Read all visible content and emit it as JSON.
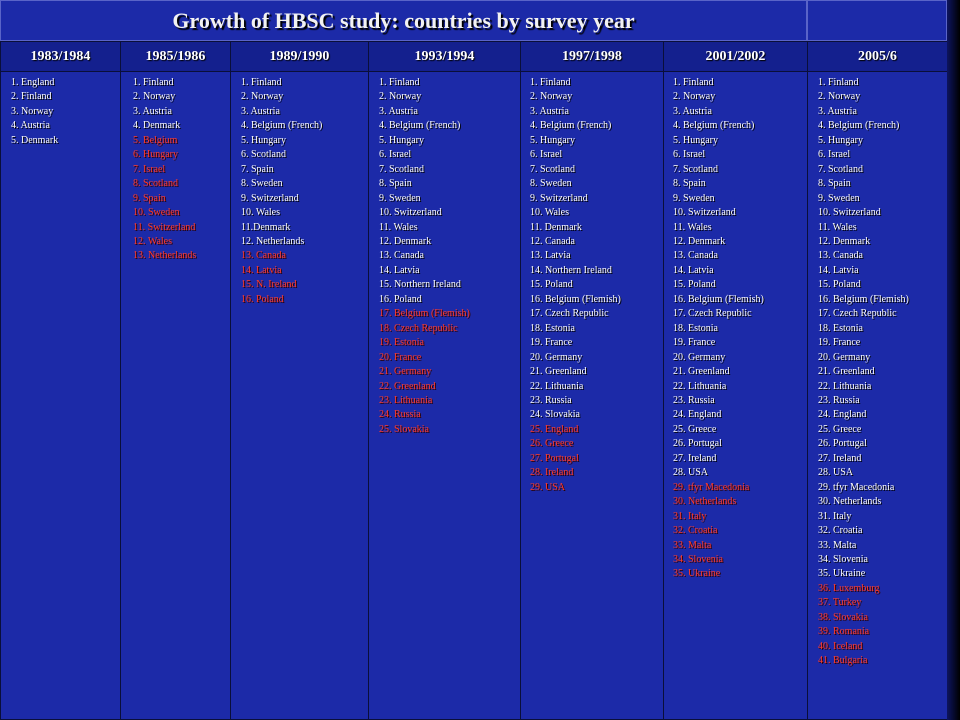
{
  "title": "Growth of  HBSC study: countries by survey year",
  "colors": {
    "background": "#1c2aa8",
    "header": "#14208e",
    "text": "#ffffff",
    "new_country": "#ff3a2a"
  },
  "columns": [
    {
      "year": "1983/1984",
      "countries": [
        {
          "label": "1. England",
          "new": false
        },
        {
          "label": "2. Finland",
          "new": false
        },
        {
          "label": "3. Norway",
          "new": false
        },
        {
          "label": "4. Austria",
          "new": false
        },
        {
          "label": "5. Denmark",
          "new": false
        }
      ]
    },
    {
      "year": "1985/1986",
      "countries": [
        {
          "label": "1. Finland",
          "new": false
        },
        {
          "label": "2. Norway",
          "new": false
        },
        {
          "label": "3. Austria",
          "new": false
        },
        {
          "label": "4. Denmark",
          "new": false
        },
        {
          "label": "5. Belgium",
          "new": true
        },
        {
          "label": "6. Hungary",
          "new": true
        },
        {
          "label": "7. Israel",
          "new": true
        },
        {
          "label": "8. Scotland",
          "new": true
        },
        {
          "label": "9. Spain",
          "new": true
        },
        {
          "label": "10. Sweden",
          "new": true
        },
        {
          "label": "11. Switzerland",
          "new": true
        },
        {
          "label": "12. Wales",
          "new": true
        },
        {
          "label": "13. Netherlands",
          "new": true
        }
      ]
    },
    {
      "year": "1989/1990",
      "countries": [
        {
          "label": "1. Finland",
          "new": false
        },
        {
          "label": "2. Norway",
          "new": false
        },
        {
          "label": "3. Austria",
          "new": false
        },
        {
          "label": "4. Belgium (French)",
          "new": false
        },
        {
          "label": "5. Hungary",
          "new": false
        },
        {
          "label": "6. Scotland",
          "new": false
        },
        {
          "label": "7. Spain",
          "new": false
        },
        {
          "label": "8. Sweden",
          "new": false
        },
        {
          "label": "9. Switzerland",
          "new": false
        },
        {
          "label": "10. Wales",
          "new": false
        },
        {
          "label": "11.Denmark",
          "new": false
        },
        {
          "label": "12. Netherlands",
          "new": false
        },
        {
          "label": "13. Canada",
          "new": true
        },
        {
          "label": "14. Latvia",
          "new": true
        },
        {
          "label": "15. N. Ireland",
          "new": true
        },
        {
          "label": "16. Poland",
          "new": true
        }
      ]
    },
    {
      "year": "1993/1994",
      "countries": [
        {
          "label": "1. Finland",
          "new": false
        },
        {
          "label": "2. Norway",
          "new": false
        },
        {
          "label": "3. Austria",
          "new": false
        },
        {
          "label": "4. Belgium (French)",
          "new": false
        },
        {
          "label": "5. Hungary",
          "new": false
        },
        {
          "label": "6. Israel",
          "new": false
        },
        {
          "label": "7. Scotland",
          "new": false
        },
        {
          "label": "8. Spain",
          "new": false
        },
        {
          "label": "9. Sweden",
          "new": false
        },
        {
          "label": "10. Switzerland",
          "new": false
        },
        {
          "label": "11. Wales",
          "new": false
        },
        {
          "label": "12. Denmark",
          "new": false
        },
        {
          "label": "13. Canada",
          "new": false
        },
        {
          "label": "14. Latvia",
          "new": false
        },
        {
          "label": "15. Northern Ireland",
          "new": false
        },
        {
          "label": "16. Poland",
          "new": false
        },
        {
          "label": "17. Belgium (Flemish)",
          "new": true
        },
        {
          "label": "18. Czech Republic",
          "new": true
        },
        {
          "label": "19. Estonia",
          "new": true
        },
        {
          "label": "20. France",
          "new": true
        },
        {
          "label": "21. Germany",
          "new": true
        },
        {
          "label": "22. Greenland",
          "new": true
        },
        {
          "label": "23. Lithuania",
          "new": true
        },
        {
          "label": "24. Russia",
          "new": true
        },
        {
          "label": "25. Slovakia",
          "new": true
        }
      ]
    },
    {
      "year": "1997/1998",
      "countries": [
        {
          "label": "1. Finland",
          "new": false
        },
        {
          "label": "2. Norway",
          "new": false
        },
        {
          "label": "3. Austria",
          "new": false
        },
        {
          "label": "4. Belgium (French)",
          "new": false
        },
        {
          "label": "5. Hungary",
          "new": false
        },
        {
          "label": "6. Israel",
          "new": false
        },
        {
          "label": "7. Scotland",
          "new": false
        },
        {
          "label": "8. Sweden",
          "new": false
        },
        {
          "label": "9. Switzerland",
          "new": false
        },
        {
          "label": "10. Wales",
          "new": false
        },
        {
          "label": "11. Denmark",
          "new": false
        },
        {
          "label": "12. Canada",
          "new": false
        },
        {
          "label": "13. Latvia",
          "new": false
        },
        {
          "label": "14. Northern Ireland",
          "new": false
        },
        {
          "label": "15. Poland",
          "new": false
        },
        {
          "label": "16. Belgium (Flemish)",
          "new": false
        },
        {
          "label": "17. Czech Republic",
          "new": false
        },
        {
          "label": "18. Estonia",
          "new": false
        },
        {
          "label": "19. France",
          "new": false
        },
        {
          "label": "20. Germany",
          "new": false
        },
        {
          "label": "21. Greenland",
          "new": false
        },
        {
          "label": "22. Lithuania",
          "new": false
        },
        {
          "label": "23. Russia",
          "new": false
        },
        {
          "label": "24. Slovakia",
          "new": false
        },
        {
          "label": "25. England",
          "new": true
        },
        {
          "label": "26. Greece",
          "new": true
        },
        {
          "label": "27. Portugal",
          "new": true
        },
        {
          "label": "28. Ireland",
          "new": true
        },
        {
          "label": "29. USA",
          "new": true
        }
      ]
    },
    {
      "year": "2001/2002",
      "countries": [
        {
          "label": "1. Finland",
          "new": false
        },
        {
          "label": "2. Norway",
          "new": false
        },
        {
          "label": "3. Austria",
          "new": false
        },
        {
          "label": "4. Belgium (French)",
          "new": false
        },
        {
          "label": "5. Hungary",
          "new": false
        },
        {
          "label": "6. Israel",
          "new": false
        },
        {
          "label": "7. Scotland",
          "new": false
        },
        {
          "label": "8. Spain",
          "new": false
        },
        {
          "label": "9. Sweden",
          "new": false
        },
        {
          "label": "10. Switzerland",
          "new": false
        },
        {
          "label": "11. Wales",
          "new": false
        },
        {
          "label": "12. Denmark",
          "new": false
        },
        {
          "label": "13. Canada",
          "new": false
        },
        {
          "label": "14. Latvia",
          "new": false
        },
        {
          "label": "15. Poland",
          "new": false
        },
        {
          "label": "16. Belgium (Flemish)",
          "new": false
        },
        {
          "label": "17. Czech Republic",
          "new": false
        },
        {
          "label": "18. Estonia",
          "new": false
        },
        {
          "label": "19. France",
          "new": false
        },
        {
          "label": "20. Germany",
          "new": false
        },
        {
          "label": "21. Greenland",
          "new": false
        },
        {
          "label": "22. Lithuania",
          "new": false
        },
        {
          "label": "23. Russia",
          "new": false
        },
        {
          "label": "24. England",
          "new": false
        },
        {
          "label": "25. Greece",
          "new": false
        },
        {
          "label": "26. Portugal",
          "new": false
        },
        {
          "label": "27. Ireland",
          "new": false
        },
        {
          "label": "28. USA",
          "new": false
        },
        {
          "label": "29. tfyr Macedonia",
          "new": true
        },
        {
          "label": "30. Netherlands",
          "new": true
        },
        {
          "label": "31. Italy",
          "new": true
        },
        {
          "label": "32. Croatia",
          "new": true
        },
        {
          "label": "33. Malta",
          "new": true
        },
        {
          "label": "34. Slovenia",
          "new": true
        },
        {
          "label": "35. Ukraine",
          "new": true
        }
      ]
    },
    {
      "year": "2005/6",
      "countries": [
        {
          "label": "1. Finland",
          "new": false
        },
        {
          "label": "2. Norway",
          "new": false
        },
        {
          "label": "3. Austria",
          "new": false
        },
        {
          "label": "4. Belgium (French)",
          "new": false
        },
        {
          "label": "5. Hungary",
          "new": false
        },
        {
          "label": "6. Israel",
          "new": false
        },
        {
          "label": "7. Scotland",
          "new": false
        },
        {
          "label": "8. Spain",
          "new": false
        },
        {
          "label": "9. Sweden",
          "new": false
        },
        {
          "label": "10. Switzerland",
          "new": false
        },
        {
          "label": "11. Wales",
          "new": false
        },
        {
          "label": "12. Denmark",
          "new": false
        },
        {
          "label": "13. Canada",
          "new": false
        },
        {
          "label": "14. Latvia",
          "new": false
        },
        {
          "label": "15. Poland",
          "new": false
        },
        {
          "label": "16. Belgium (Flemish)",
          "new": false
        },
        {
          "label": "17. Czech Republic",
          "new": false
        },
        {
          "label": "18. Estonia",
          "new": false
        },
        {
          "label": "19. France",
          "new": false
        },
        {
          "label": "20. Germany",
          "new": false
        },
        {
          "label": "21. Greenland",
          "new": false
        },
        {
          "label": "22. Lithuania",
          "new": false
        },
        {
          "label": "23. Russia",
          "new": false
        },
        {
          "label": "24. England",
          "new": false
        },
        {
          "label": "25. Greece",
          "new": false
        },
        {
          "label": "26. Portugal",
          "new": false
        },
        {
          "label": "27. Ireland",
          "new": false
        },
        {
          "label": "28. USA",
          "new": false
        },
        {
          "label": "29. tfyr Macedonia",
          "new": false
        },
        {
          "label": "30. Netherlands",
          "new": false
        },
        {
          "label": "31. Italy",
          "new": false
        },
        {
          "label": "32. Croatia",
          "new": false
        },
        {
          "label": "33. Malta",
          "new": false
        },
        {
          "label": "34. Slovenia",
          "new": false
        },
        {
          "label": "35. Ukraine",
          "new": false
        },
        {
          "label": "36. Luxemburg",
          "new": true
        },
        {
          "label": "37. Turkey",
          "new": true
        },
        {
          "label": "38. Slovakia",
          "new": true
        },
        {
          "label": "39. Romania",
          "new": true
        },
        {
          "label": "40. Iceland",
          "new": true
        },
        {
          "label": "41. Bulgaria",
          "new": true
        }
      ]
    }
  ]
}
